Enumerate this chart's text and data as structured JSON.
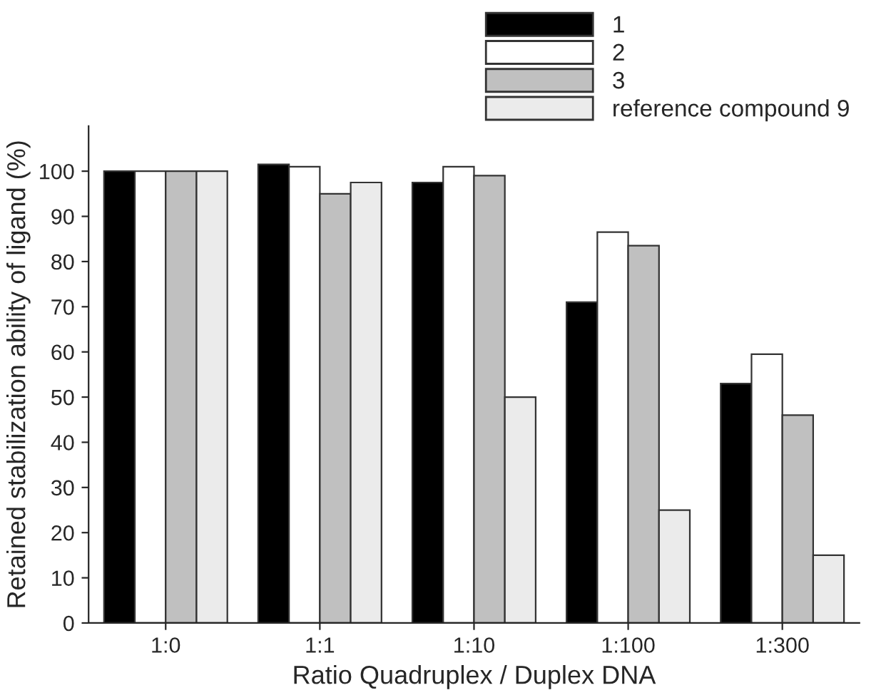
{
  "chart_data": {
    "type": "bar",
    "xlabel": "Ratio Quadruplex / Duplex DNA",
    "ylabel": "Retained stabilization ability of ligand (%)",
    "categories": [
      "1:0",
      "1:1",
      "1:10",
      "1:100",
      "1:300"
    ],
    "series": [
      {
        "name": "1",
        "color": "#000000",
        "values": [
          100,
          101.5,
          97.5,
          71,
          53
        ]
      },
      {
        "name": "2",
        "color": "#ffffff",
        "values": [
          100,
          101,
          101,
          86.5,
          59.5
        ]
      },
      {
        "name": "3",
        "color": "#c0c0c0",
        "values": [
          100,
          95,
          99,
          83.5,
          46
        ]
      },
      {
        "name": "reference compound 9",
        "color": "#ebebeb",
        "values": [
          100,
          97.5,
          50,
          25,
          15
        ]
      }
    ],
    "ylim": [
      0,
      110
    ],
    "yticks": [
      0,
      10,
      20,
      30,
      40,
      50,
      60,
      70,
      80,
      90,
      100
    ],
    "legend": "top right",
    "grid": false
  }
}
